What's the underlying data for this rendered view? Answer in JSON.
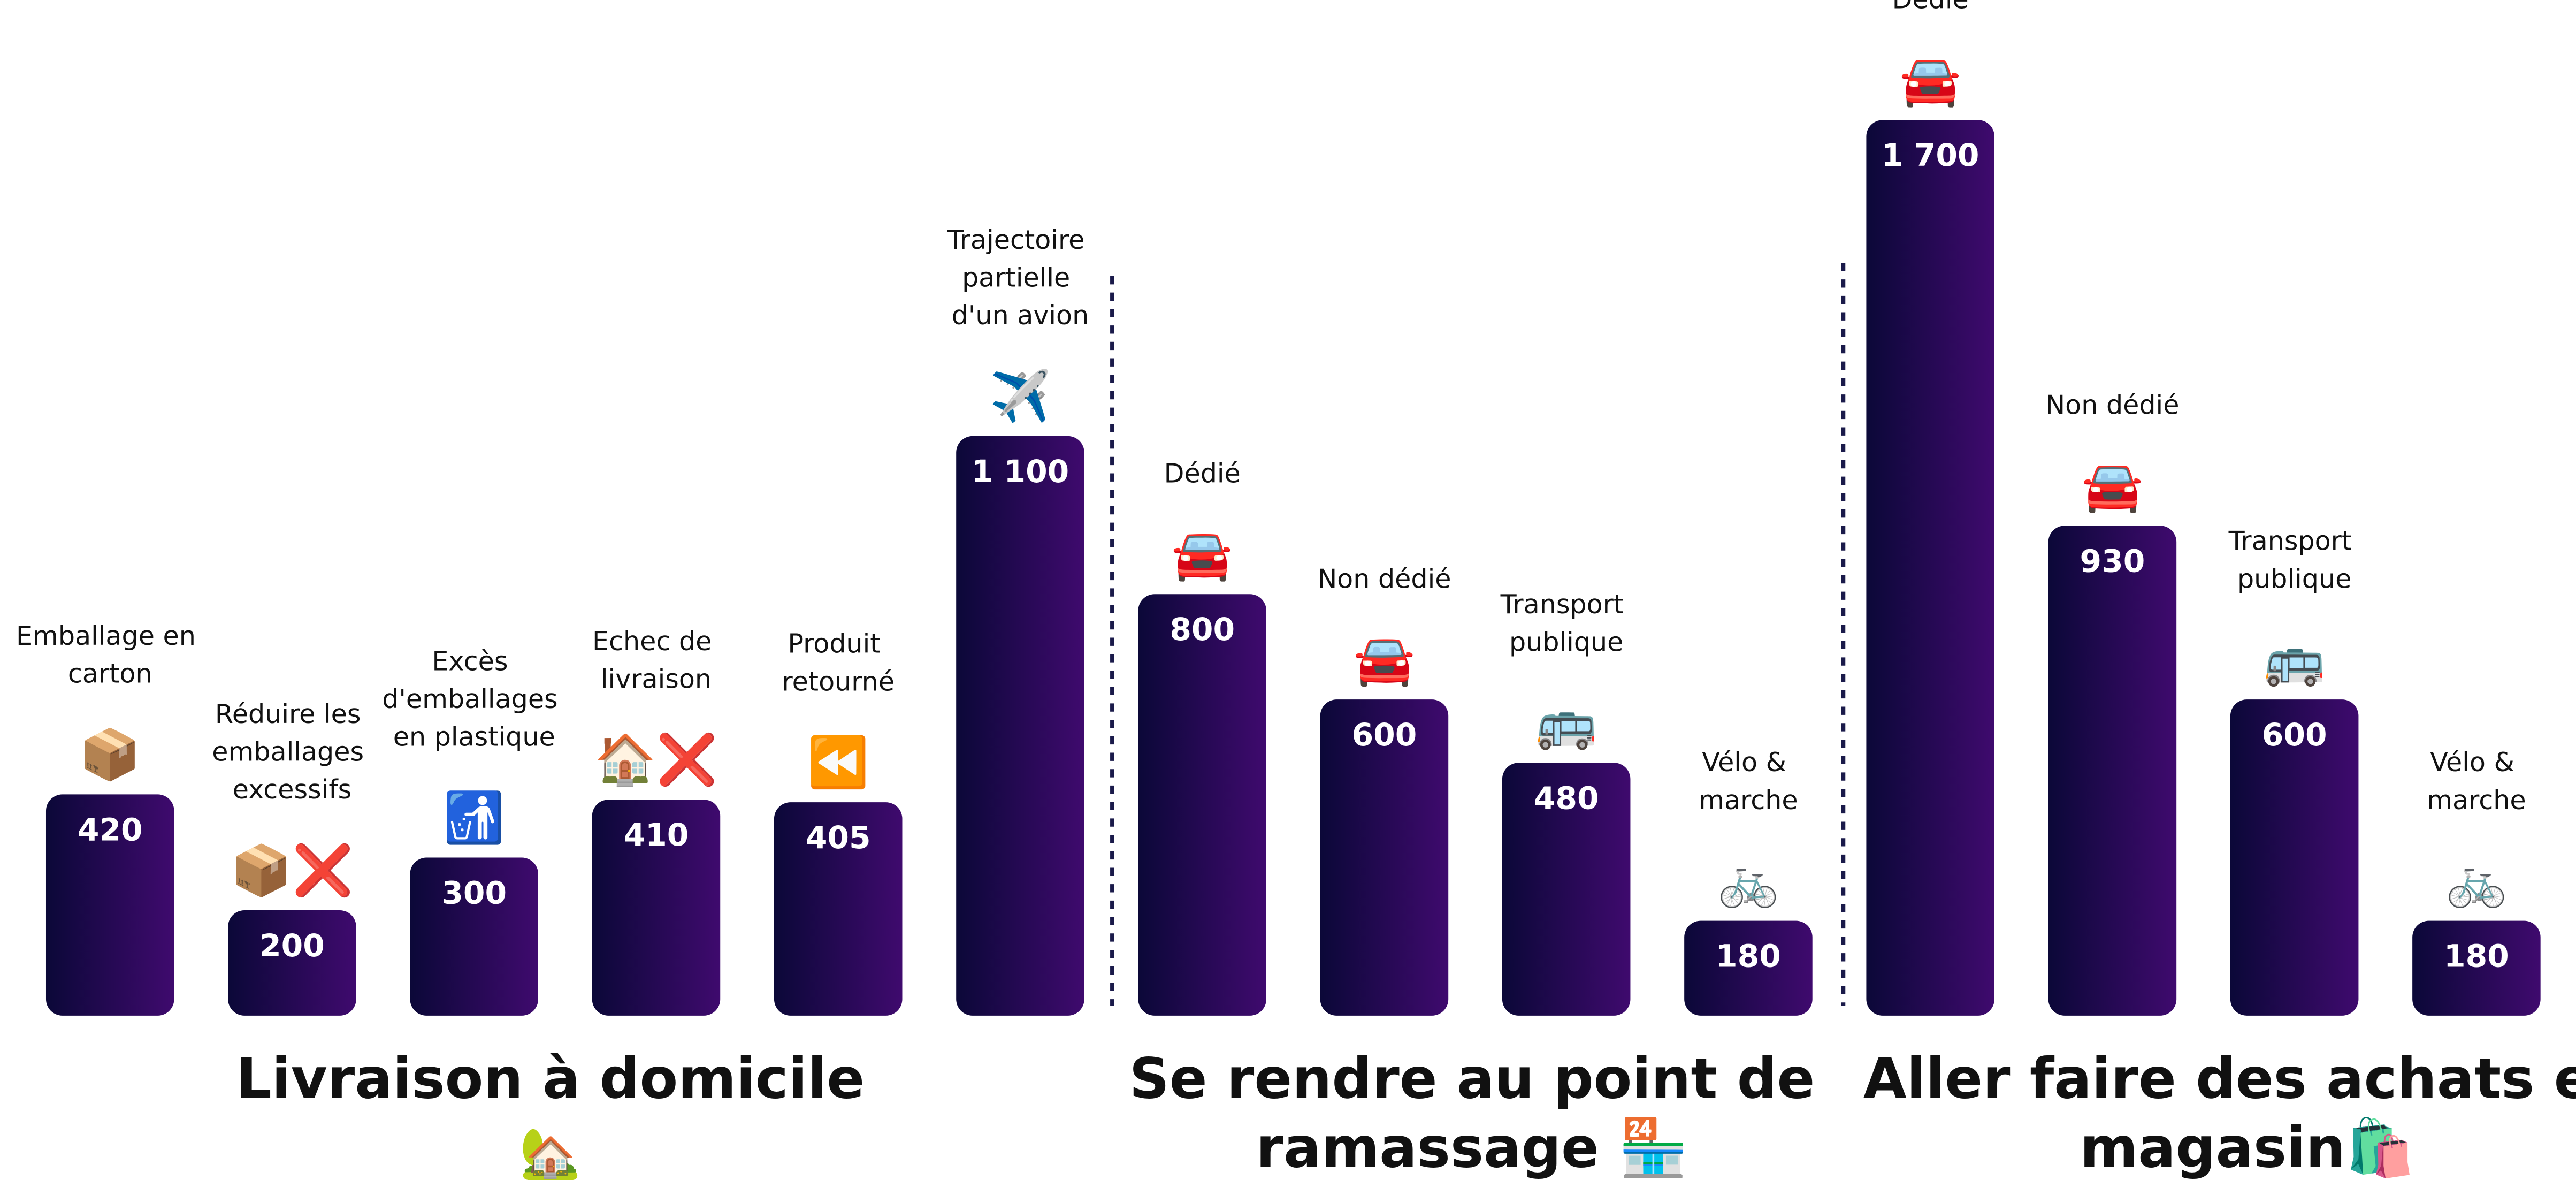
{
  "chart_data": {
    "type": "bar",
    "categories": [
      "Emballage en carton",
      "Réduire les emballages excessifs",
      "Excès d'emballages en plastique",
      "Echec de livraison",
      "Produit retourné",
      "Trajectoire partielle d'un avion",
      "Dédié",
      "Non dédié",
      "Transport publique",
      "Vélo & marche",
      "Dédié",
      "Non dédié",
      "Transport publique",
      "Vélo & marche"
    ],
    "icons": [
      "📦",
      "📦❌",
      "🚮",
      "🏠❌",
      "⏪",
      "✈️",
      "🚘",
      "🚘",
      "🚌",
      "🚲",
      "🚘",
      "🚘",
      "🚌",
      "🚲"
    ],
    "values": [
      420,
      200,
      300,
      410,
      405,
      1100,
      800,
      600,
      480,
      180,
      1700,
      930,
      600,
      180
    ],
    "value_labels": [
      "420",
      "200",
      "300",
      "410",
      "405",
      "1 100",
      "800",
      "600",
      "480",
      "180",
      "1 700",
      "930",
      "600",
      "180"
    ],
    "groups": [
      {
        "lines": [
          "Livraison à domicile"
        ],
        "icon": "🏡",
        "color": "#9b1ff0"
      },
      {
        "lines": [
          "Se rendre au point de",
          "ramassage 🏪"
        ],
        "color": "#111111"
      },
      {
        "lines": [
          "Aller faire des achats en",
          "magasin🛍️"
        ],
        "color": "#111111"
      }
    ],
    "color_start": "#0b0838",
    "color_end": "#3f0a6e"
  }
}
